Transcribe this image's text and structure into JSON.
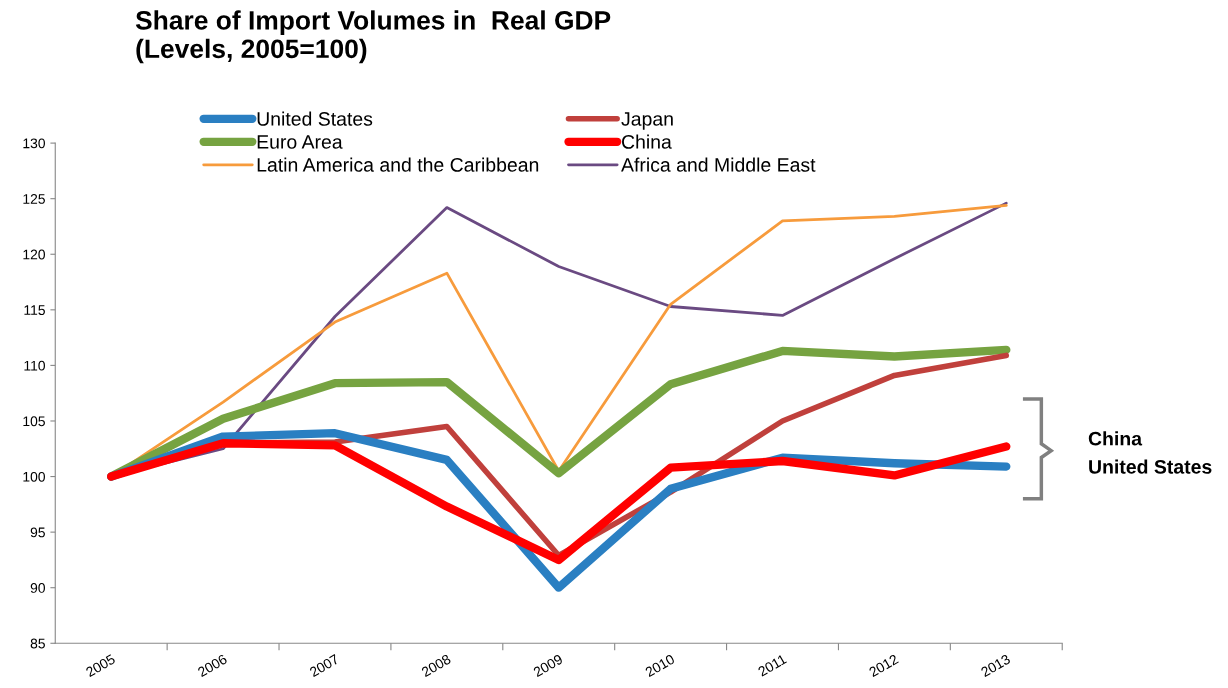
{
  "chart_data": {
    "type": "line",
    "title": "Share of Import Volumes in  Real GDP\n(Levels, 2005=100)",
    "categories": [
      "2005",
      "2006",
      "2007",
      "2008",
      "2009",
      "2010",
      "2011",
      "2012",
      "2013"
    ],
    "series": [
      {
        "name": "United States",
        "color": "#2a7fc2",
        "values": [
          100,
          103.6,
          103.9,
          101.5,
          90.0,
          98.9,
          101.7,
          101.2,
          100.9
        ]
      },
      {
        "name": "Japan",
        "color": "#c0403c",
        "values": [
          100,
          103.0,
          103.1,
          104.5,
          92.9,
          98.6,
          105.0,
          109.1,
          110.9
        ]
      },
      {
        "name": "Euro Area",
        "color": "#76a341",
        "values": [
          100,
          105.2,
          108.4,
          108.5,
          100.3,
          108.3,
          111.3,
          110.8,
          111.4
        ]
      },
      {
        "name": "China",
        "color": "#ff0000",
        "values": [
          100,
          103.0,
          102.8,
          97.3,
          92.5,
          100.8,
          101.4,
          100.1,
          102.7
        ]
      },
      {
        "name": "Latin America and the Caribbean",
        "color": "#f79b3c",
        "values": [
          100,
          106.7,
          113.9,
          118.3,
          100.5,
          115.5,
          123.0,
          123.4,
          124.4
        ]
      },
      {
        "name": "Africa and Middle East",
        "color": "#6a4a82",
        "values": [
          100,
          102.5,
          114.4,
          124.2,
          118.9,
          115.3,
          114.5,
          119.6,
          124.6
        ]
      }
    ],
    "ylim": [
      85,
      130
    ],
    "yticks": [
      85,
      90,
      95,
      100,
      105,
      110,
      115,
      120,
      125,
      130
    ],
    "grid": false,
    "legend": "top",
    "marker": "none",
    "line_style": "solid",
    "annotations": [
      "China",
      "United States"
    ]
  }
}
